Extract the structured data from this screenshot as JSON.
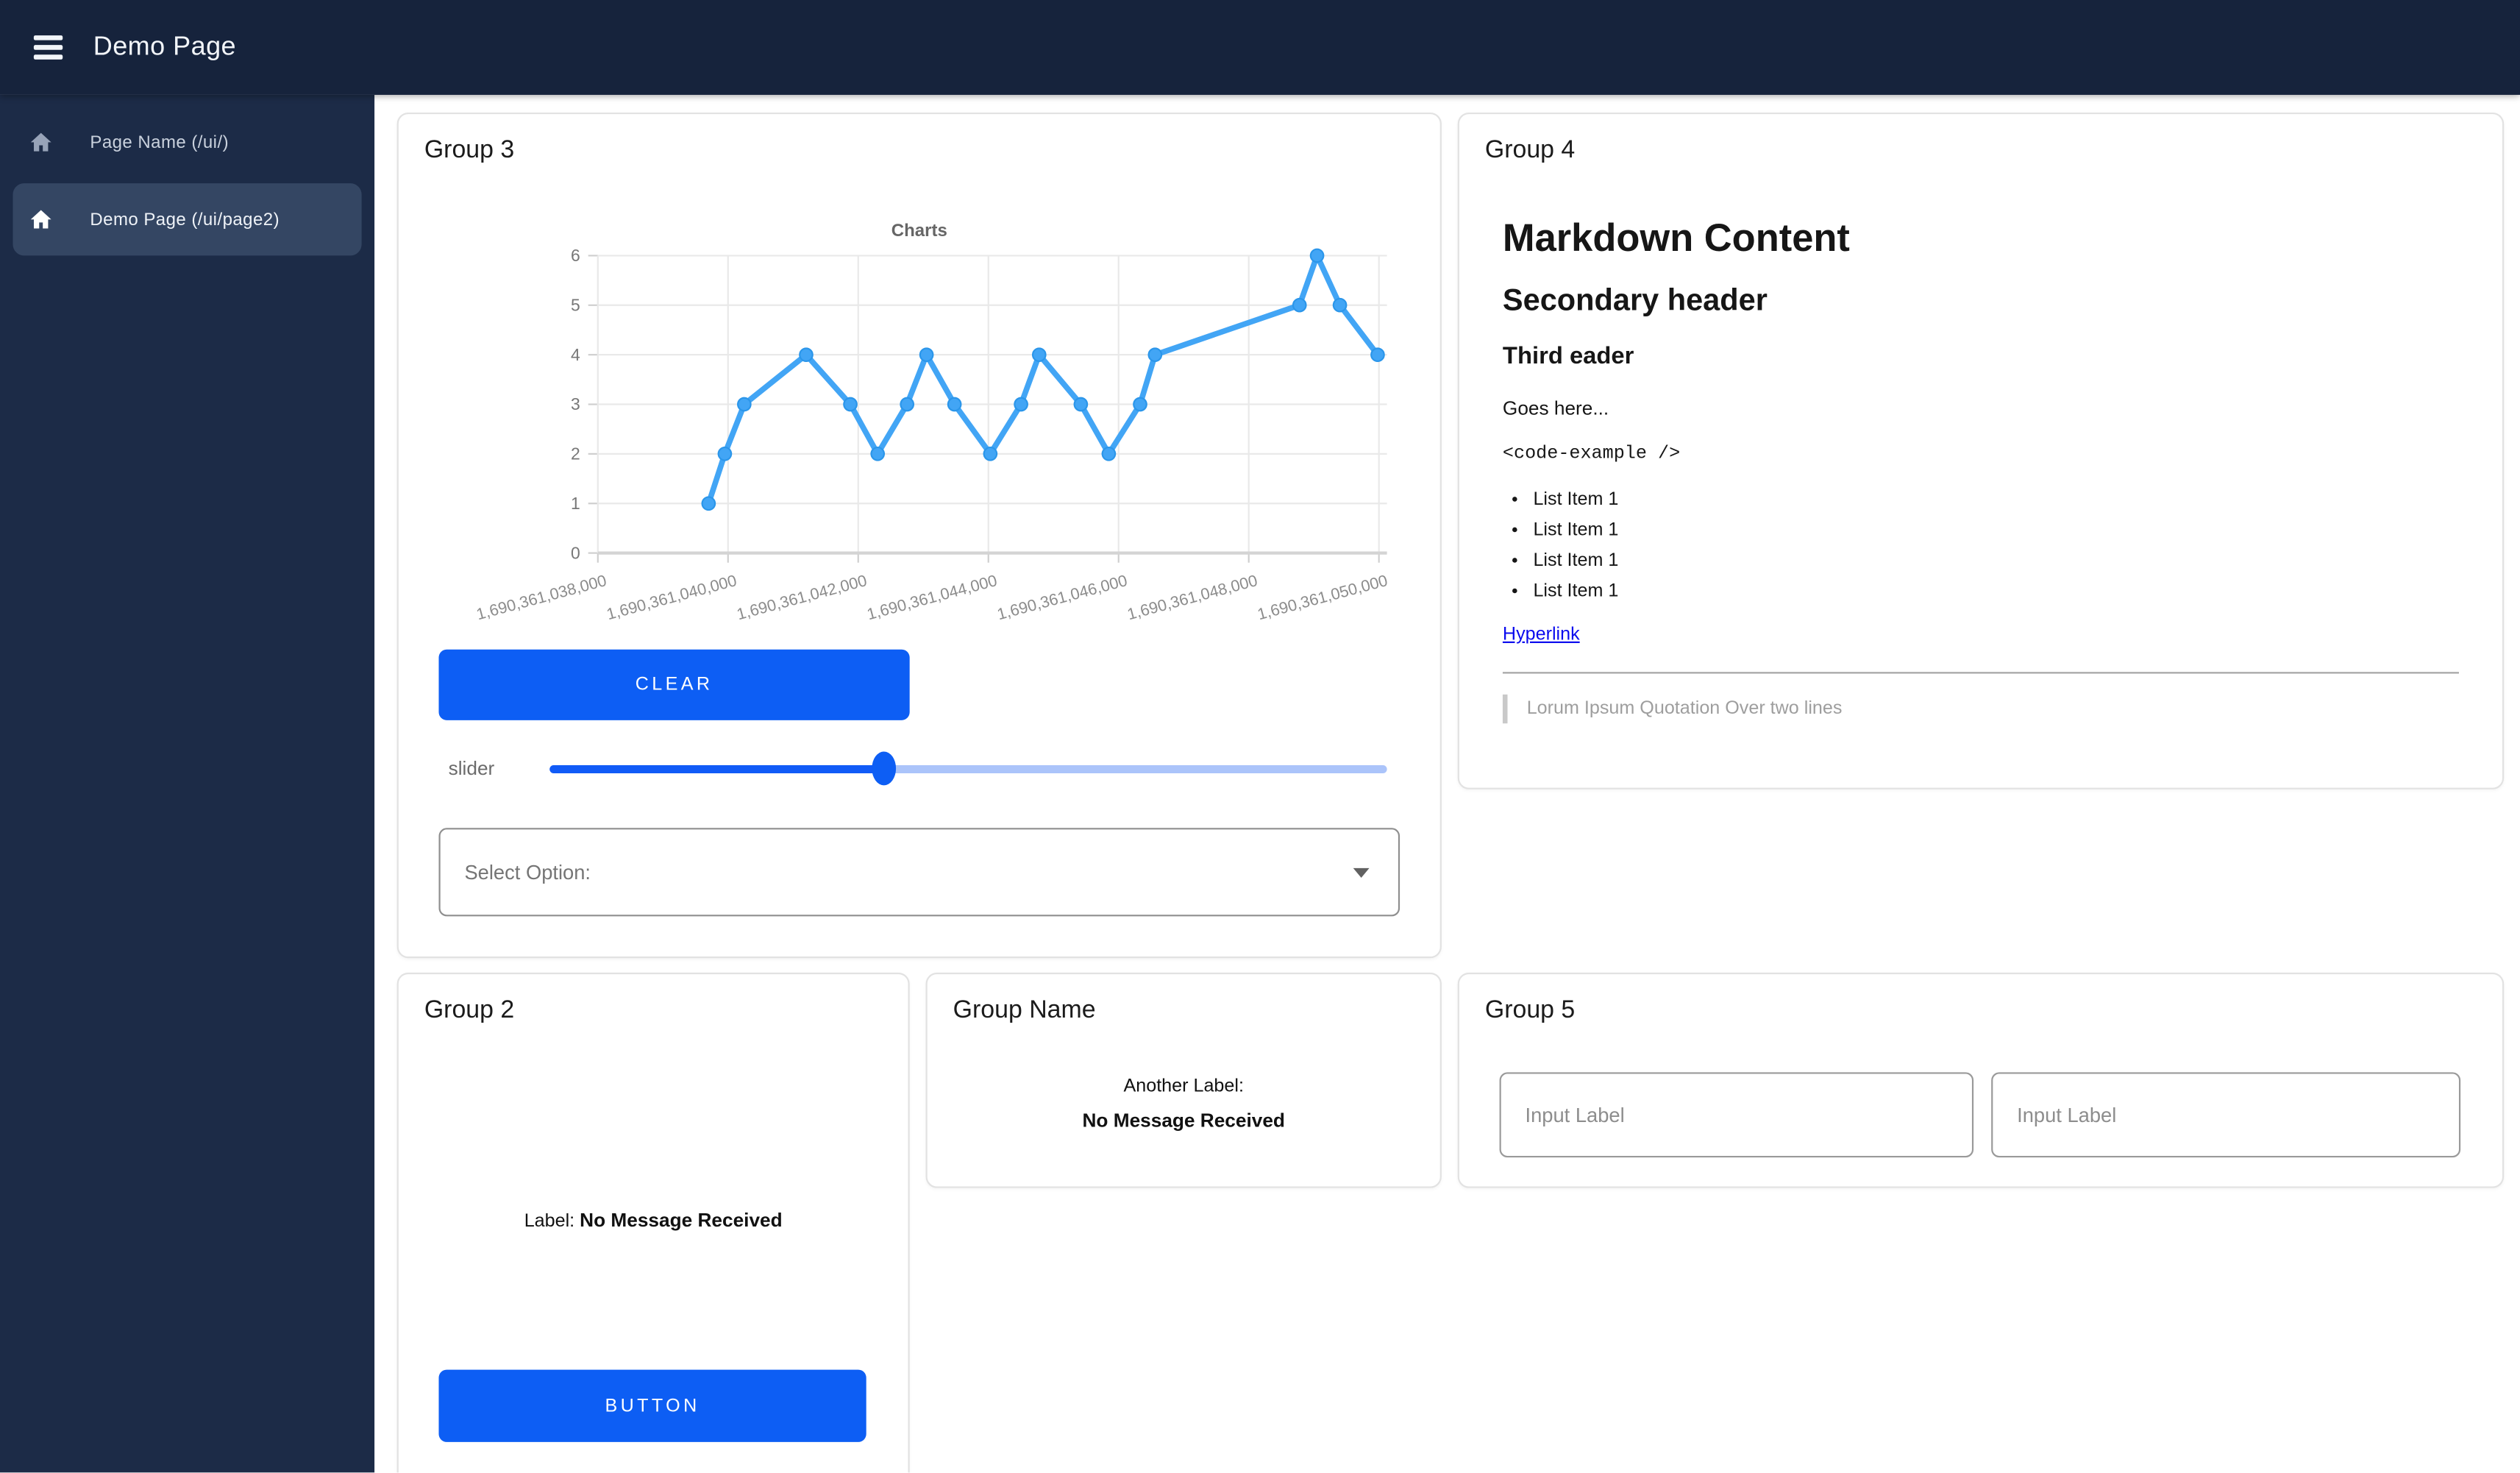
{
  "topbar": {
    "title": "Demo Page",
    "menu_icon": "hamburger-menu"
  },
  "sidebar": {
    "items": [
      {
        "label": "Page Name (/ui/)",
        "icon": "home",
        "active": false
      },
      {
        "label": "Demo Page (/ui/page2)",
        "icon": "home",
        "active": true
      }
    ]
  },
  "groups": {
    "group3": {
      "title": "Group 3",
      "clear_label": "CLEAR",
      "slider_label": "slider",
      "slider_pct": 40,
      "select_label": "Select Option:",
      "select_caret_icon": "chevron-down"
    },
    "group4": {
      "title": "Group 4",
      "markdown": {
        "h1": "Markdown Content",
        "h2": "Secondary header",
        "h3": "Third eader",
        "paragraph": "Goes here...",
        "code": "<code-example />",
        "list_items": [
          "List Item 1",
          "List Item 1",
          "List Item 1",
          "List Item 1"
        ],
        "link": "Hyperlink",
        "quote": "Lorum Ipsum Quotation Over two lines"
      }
    },
    "group2": {
      "title": "Group 2",
      "label": "Label:",
      "message": "No Message Received",
      "button_label": "BUTTON"
    },
    "group_name": {
      "title": "Group Name",
      "label": "Another Label:",
      "message": "No Message Received"
    },
    "group5": {
      "title": "Group 5",
      "inputs": [
        {
          "placeholder": "Input Label"
        },
        {
          "placeholder": "Input Label"
        }
      ]
    }
  },
  "colors": {
    "topbar_bg": "#16233c",
    "sidebar_bg": "#1c2b47",
    "sidebar_active_bg": "#344663",
    "accent_blue": "#0d5ef4",
    "slider_track_light": "#abc4fa",
    "link_blue": "#0b0bee",
    "chart_line": "#42a5f5"
  },
  "chart_data": {
    "type": "line",
    "title": "Charts",
    "x": [
      1690361039700,
      1690361039950,
      1690361040250,
      1690361041200,
      1690361041880,
      1690361042300,
      1690361042750,
      1690361043050,
      1690361043480,
      1690361044030,
      1690361044500,
      1690361044780,
      1690361045420,
      1690361045850,
      1690361046330,
      1690361046560,
      1690361048780,
      1690361049050,
      1690361049400,
      1690361049980
    ],
    "y": [
      1,
      2,
      3,
      4,
      3,
      2,
      3,
      4,
      3,
      2,
      3,
      4,
      3,
      2,
      3,
      4,
      5,
      6,
      5,
      4
    ],
    "x_ticks": [
      1690361038000,
      1690361040000,
      1690361042000,
      1690361044000,
      1690361046000,
      1690361048000,
      1690361050000
    ],
    "x_tick_labels": [
      "1,690,361,038,000",
      "1,690,361,040,000",
      "1,690,361,042,000",
      "1,690,361,044,000",
      "1,690,361,046,000",
      "1,690,361,048,000",
      "1,690,361,050,000"
    ],
    "y_ticks": [
      0,
      1,
      2,
      3,
      4,
      5,
      6
    ],
    "ylim": [
      0,
      6
    ],
    "xlabel": "",
    "ylabel": "",
    "grid": true,
    "legend": "none",
    "line_color": "#42a5f5"
  }
}
